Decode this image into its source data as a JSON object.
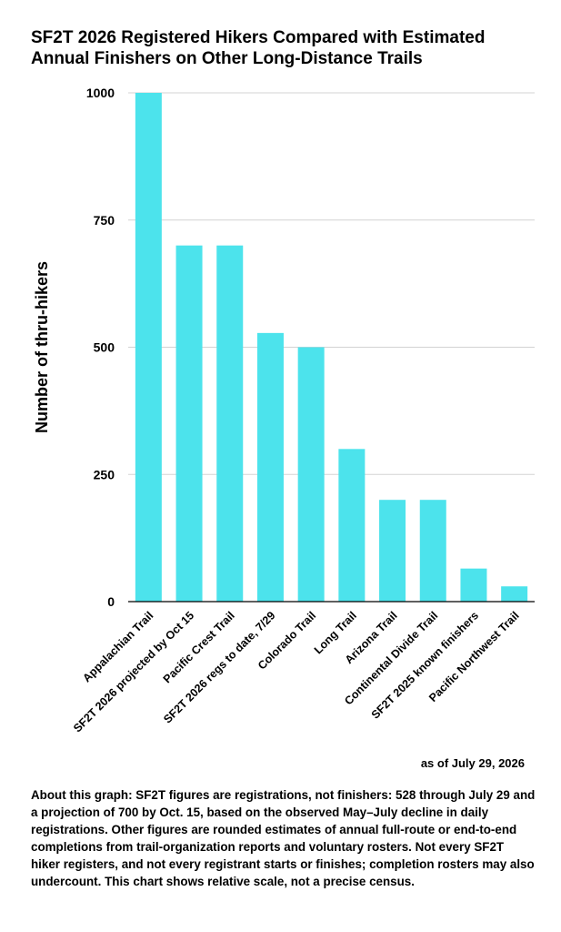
{
  "title_lines": [
    "SF2T 2026 Registered Hikers Compared with Estimated",
    "Annual Finishers on Other Long-Distance Trails"
  ],
  "as_of": "as of July 29, 2026",
  "note": "About this graph: SF2T figures are registrations, not finishers: 528 through July 29 and a projection of 700 by Oct. 15, based on the observed May–July decline in daily registrations. Other figures are rounded estimates of annual full-route or end-to-end completions from trail-organization reports and voluntary rosters. Not every SF2T hiker registers, and not every registrant starts or finishes; completion rosters may also undercount. This chart shows relative scale, not a precise census.",
  "colors": {
    "bar": "#4ce3ec",
    "grid": "#d3d3d3",
    "axis": "#000000"
  },
  "chart_data": {
    "type": "bar",
    "title": "SF2T 2026 Registered Hikers Compared with Estimated Annual Finishers on Other Long-Distance Trails",
    "ylabel": "Number of thru-hikers",
    "xlabel": "",
    "ylim": [
      0,
      1000
    ],
    "yticks": [
      0,
      250,
      500,
      750,
      1000
    ],
    "grid": true,
    "categories": [
      "Appalachian Trail",
      "SF2T 2026 projected by Oct 15",
      "Pacific Crest Trail",
      "SF2T 2026 regs to date, 7/29",
      "Colorado Trail",
      "Long Trail",
      "Arizona Trail",
      "Continental Divide Trail",
      "SF2T 2025 known finishers",
      "Pacific Northwest Trail"
    ],
    "values": [
      1000,
      700,
      700,
      528,
      500,
      300,
      200,
      200,
      65,
      30
    ]
  }
}
